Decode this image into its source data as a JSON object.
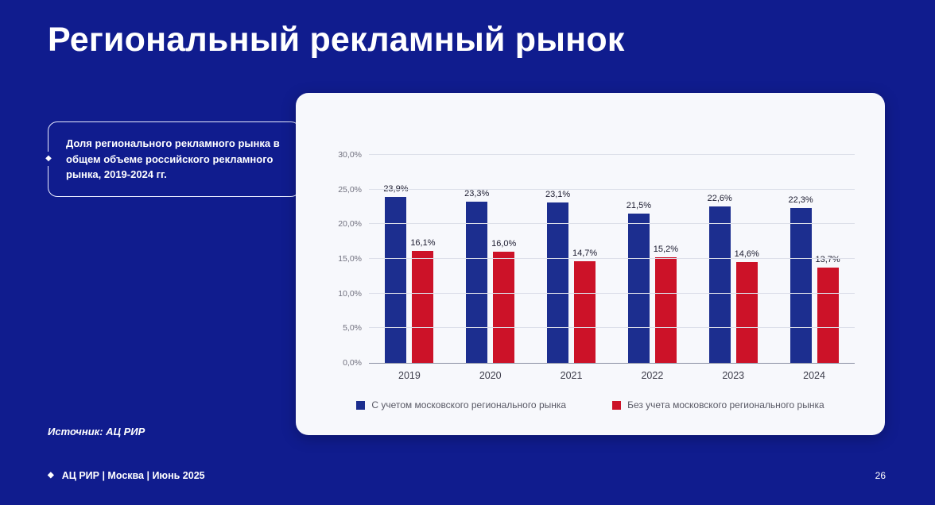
{
  "page": {
    "title": "Региональный рекламный рынок",
    "source": "Источник: АЦ РИР",
    "page_number": "26"
  },
  "callout": {
    "text": "Доля регионального рекламного рынка в общем объеме российского рекламного рынка, 2019-2024 гг."
  },
  "footer": {
    "text": "АЦ РИР | Москва | Июнь 2025"
  },
  "colors": {
    "background": "#101c8e",
    "bar_blue": "#1c2e8f",
    "bar_red": "#cc1228"
  },
  "chart_data": {
    "type": "bar",
    "categories": [
      "2019",
      "2020",
      "2021",
      "2022",
      "2023",
      "2024"
    ],
    "series": [
      {
        "name": "С учетом московского регионального рынка",
        "color": "#1c2e8f",
        "values": [
          23.9,
          23.3,
          23.1,
          21.5,
          22.6,
          22.3
        ],
        "labels": [
          "23,9%",
          "23,3%",
          "23,1%",
          "21,5%",
          "22,6%",
          "22,3%"
        ]
      },
      {
        "name": "Без учета московского регионального рынка",
        "color": "#cc1228",
        "values": [
          16.1,
          16.0,
          14.7,
          15.2,
          14.6,
          13.7
        ],
        "labels": [
          "16,1%",
          "16,0%",
          "14,7%",
          "15,2%",
          "14,6%",
          "13,7%"
        ]
      }
    ],
    "ylim": [
      0,
      30
    ],
    "yticks": [
      "0,0%",
      "5,0%",
      "10,0%",
      "15,0%",
      "20,0%",
      "25,0%",
      "30,0%"
    ],
    "grid": true,
    "legend_position": "bottom",
    "title": "Доля регионального рекламного рынка в общем объеме российского рекламного рынка, 2019-2024 гг.",
    "xlabel": "",
    "ylabel": ""
  }
}
